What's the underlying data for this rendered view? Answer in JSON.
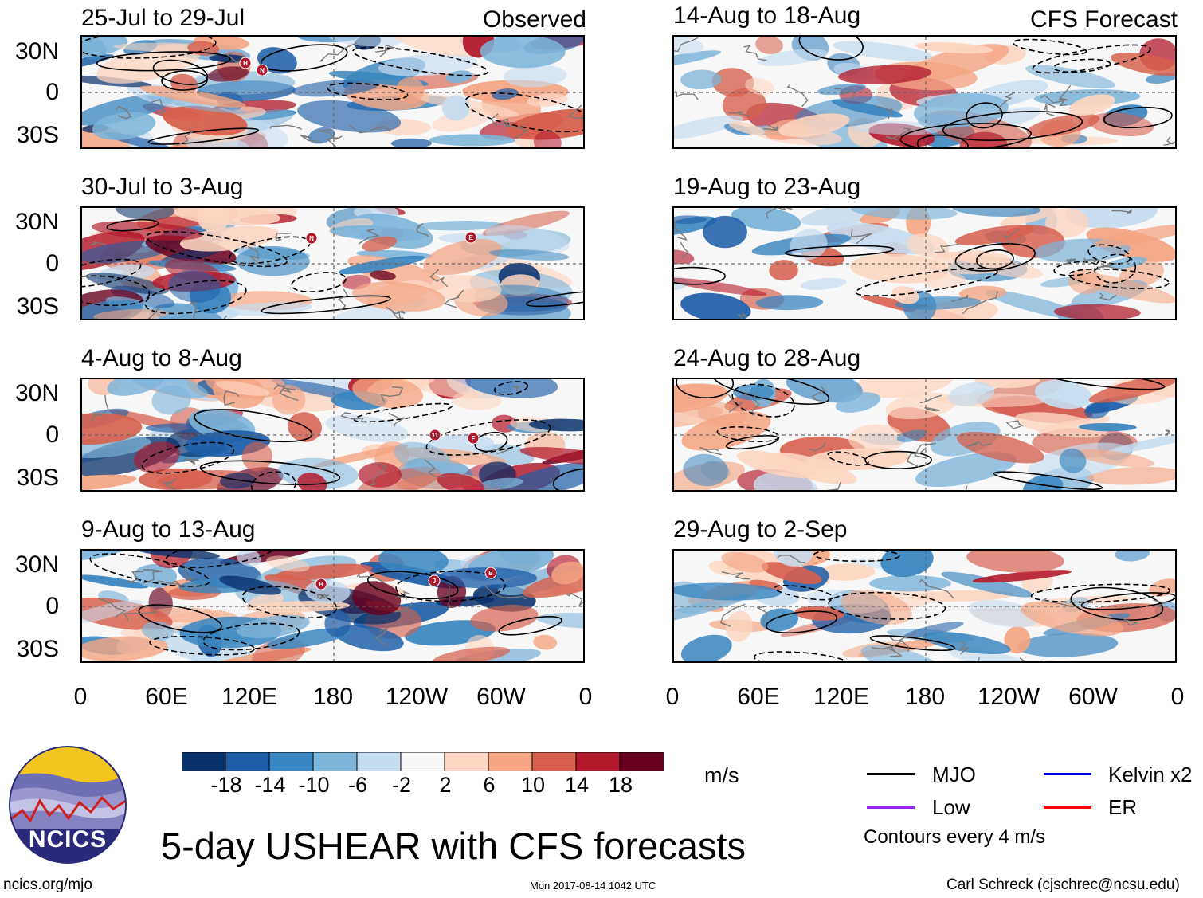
{
  "observed_panels": [
    {
      "title": "25-Jul to 29-Jul",
      "tag": "Observed"
    },
    {
      "title": "30-Jul to 3-Aug",
      "tag": ""
    },
    {
      "title": "4-Aug to 8-Aug",
      "tag": ""
    },
    {
      "title": "9-Aug to 13-Aug",
      "tag": ""
    }
  ],
  "forecast_panels": [
    {
      "title": "14-Aug to 18-Aug",
      "tag": "CFS Forecast"
    },
    {
      "title": "19-Aug to 23-Aug",
      "tag": ""
    },
    {
      "title": "24-Aug to 28-Aug",
      "tag": ""
    },
    {
      "title": "29-Aug to 2-Sep",
      "tag": ""
    }
  ],
  "lat_labels": [
    "30N",
    "0",
    "30S"
  ],
  "lon_labels": [
    "0",
    "60E",
    "120E",
    "180",
    "120W",
    "60W",
    "0"
  ],
  "storm_markers": {
    "panel0": [
      "H",
      "N"
    ],
    "panel1": [
      "N",
      "E"
    ],
    "panel2": [
      "11",
      "F"
    ],
    "panel3": [
      "B",
      "J",
      "B"
    ]
  },
  "colorbar": {
    "labels": [
      "-18",
      "-14",
      "-10",
      "-6",
      "-2",
      "2",
      "6",
      "10",
      "14",
      "18"
    ],
    "colors": [
      "#08306b",
      "#1f5fa8",
      "#3a86c0",
      "#7db4d9",
      "#c6dcef",
      "#f7f7f7",
      "#fdd5c0",
      "#f4a582",
      "#d6604d",
      "#b2182b",
      "#67001f"
    ],
    "units": "m/s"
  },
  "legend": {
    "items": [
      {
        "label": "MJO",
        "color": "#000000"
      },
      {
        "label": "Kelvin x2",
        "color": "#0000ff"
      },
      {
        "label": "Low",
        "color": "#a020f0"
      },
      {
        "label": "ER",
        "color": "#ff0000"
      }
    ],
    "contour_note": "Contours every 4 m/s"
  },
  "logo": {
    "text": "NCICS"
  },
  "main_title": "5-day USHEAR with CFS forecasts",
  "footer": {
    "url": "ncics.org/mjo",
    "timestamp": "Mon 2017-08-14 1042 UTC",
    "credit": "Carl Schreck (cjschrec@ncsu.edu)"
  }
}
